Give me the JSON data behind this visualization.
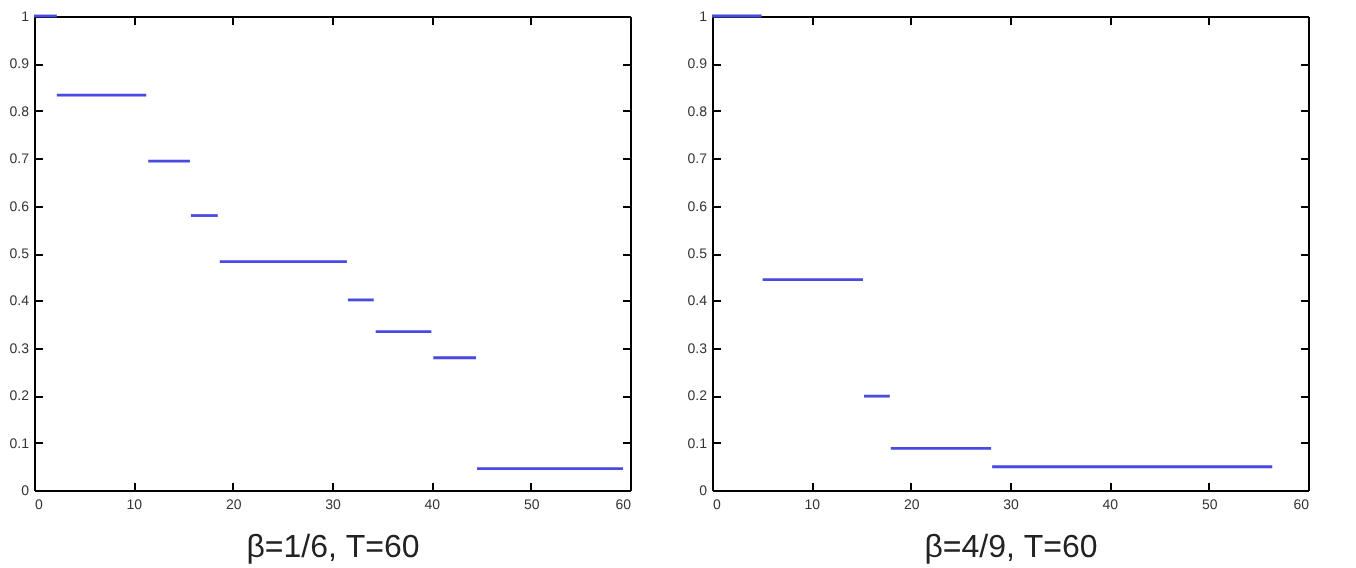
{
  "chart_data": [
    {
      "type": "line",
      "xlabel": "β=1/6, T=60",
      "xlim": [
        0,
        60
      ],
      "xticks": [
        0,
        10,
        20,
        30,
        40,
        50,
        60
      ],
      "ylim": [
        0,
        1
      ],
      "yticks": [
        0,
        0.1,
        0.2,
        0.3,
        0.4,
        0.5,
        0.6,
        0.7,
        0.8,
        0.9,
        1
      ],
      "series": [
        {
          "color": "#4a4ae0",
          "x": [
            0,
            2.3
          ],
          "values": [
            1,
            1
          ]
        },
        {
          "color": "#4a4ae0",
          "x": [
            2.3,
            11.3
          ],
          "values": [
            0.833,
            0.833
          ]
        },
        {
          "color": "#4a4ae0",
          "x": [
            11.5,
            15.7
          ],
          "values": [
            0.694,
            0.694
          ]
        },
        {
          "color": "#4a4ae0",
          "x": [
            15.8,
            18.5
          ],
          "values": [
            0.579,
            0.579
          ]
        },
        {
          "color": "#4a4ae0",
          "x": [
            18.7,
            31.5
          ],
          "values": [
            0.482,
            0.482
          ]
        },
        {
          "color": "#4a4ae0",
          "x": [
            31.6,
            34.2
          ],
          "values": [
            0.401,
            0.401
          ]
        },
        {
          "color": "#4a4ae0",
          "x": [
            34.4,
            40
          ],
          "values": [
            0.334,
            0.334
          ]
        },
        {
          "color": "#4a4ae0",
          "x": [
            40.2,
            44.5
          ],
          "values": [
            0.279,
            0.279
          ]
        },
        {
          "color": "#4a4ae0",
          "x": [
            44.6,
            59.3
          ],
          "values": [
            0.045,
            0.045
          ]
        }
      ]
    },
    {
      "type": "line",
      "xlabel": "β=4/9, T=60",
      "xlim": [
        0,
        60
      ],
      "xticks": [
        0,
        10,
        20,
        30,
        40,
        50,
        60
      ],
      "ylim": [
        0,
        1
      ],
      "yticks": [
        0,
        0.1,
        0.2,
        0.3,
        0.4,
        0.5,
        0.6,
        0.7,
        0.8,
        0.9,
        1
      ],
      "series": [
        {
          "color": "#4a4ae0",
          "x": [
            0,
            5
          ],
          "values": [
            1,
            1
          ]
        },
        {
          "color": "#4a4ae0",
          "x": [
            5.1,
            15.2
          ],
          "values": [
            0.444,
            0.444
          ]
        },
        {
          "color": "#4a4ae0",
          "x": [
            15.3,
            17.9
          ],
          "values": [
            0.198,
            0.198
          ]
        },
        {
          "color": "#4a4ae0",
          "x": [
            18,
            28.1
          ],
          "values": [
            0.088,
            0.088
          ]
        },
        {
          "color": "#4a4ae0",
          "x": [
            28.2,
            56.4
          ],
          "values": [
            0.049,
            0.049
          ]
        }
      ]
    }
  ]
}
